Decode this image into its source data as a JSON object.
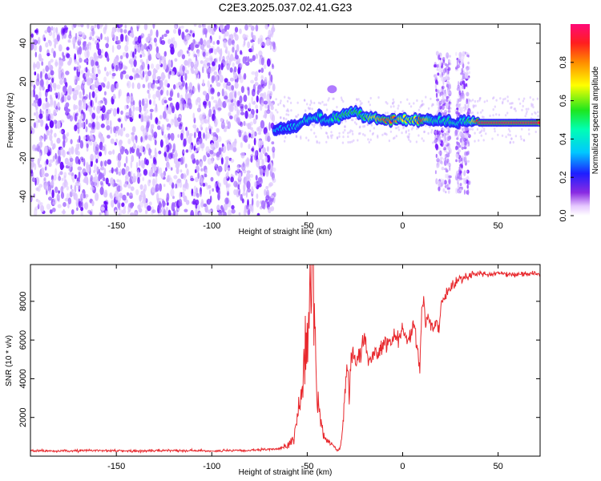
{
  "title": "C2E3.2025.037.02.41.G23",
  "colors": {
    "snr_line": "#e8282d",
    "noise_dots": "#7a1cff",
    "frame": "#000000"
  },
  "colorbar": {
    "label": "Normalized spectral amplitude",
    "ticks": [
      "0.0",
      "0.2",
      "0.4",
      "0.6",
      "0.8"
    ],
    "tick_values": [
      0.0,
      0.2,
      0.4,
      0.6,
      0.8
    ],
    "range": [
      0,
      1
    ]
  },
  "chart_data": [
    {
      "type": "heatmap",
      "name": "spectrogram",
      "xlabel": "Height of straight line (km)",
      "ylabel": "Frequency (Hz)",
      "xlim": [
        -195,
        72
      ],
      "ylim": [
        -50,
        50
      ],
      "x_ticks": [
        -150,
        -100,
        -50,
        0,
        50
      ],
      "x_tick_labels": [
        "-150",
        "-100",
        "-50",
        "0",
        "50"
      ],
      "y_ticks": [
        -40,
        -20,
        0,
        20,
        40
      ],
      "y_tick_labels": [
        "-40",
        "-20",
        "0",
        "20",
        "40"
      ],
      "noise_region": [
        -195,
        -67
      ],
      "signal_trace": {
        "x": [
          -67,
          -60,
          -55,
          -50,
          -45,
          -40,
          -35,
          -30,
          -25,
          -20,
          -15,
          -10,
          -5,
          0,
          5,
          10,
          15,
          20,
          25,
          30,
          35,
          40,
          50,
          60,
          72
        ],
        "freq": [
          -5,
          -4,
          -3,
          0,
          2,
          -1,
          1,
          3,
          4,
          2,
          1,
          0.5,
          0.5,
          0.5,
          0,
          0,
          0,
          0,
          -1,
          -1,
          -1,
          -1.5,
          -1.5,
          -1.5,
          -1.5
        ],
        "amplitude": [
          0.35,
          0.35,
          0.4,
          0.45,
          0.45,
          0.4,
          0.5,
          0.55,
          0.55,
          0.55,
          0.7,
          0.85,
          0.85,
          0.7,
          0.6,
          0.9,
          0.5,
          0.45,
          0.5,
          0.4,
          0.55,
          0.95,
          0.95,
          0.95,
          0.95
        ]
      },
      "vertical_bands": [
        [
          17,
          25
        ],
        [
          28,
          35
        ]
      ],
      "bump": {
        "x": -37,
        "freq": 16
      }
    },
    {
      "type": "line",
      "name": "snr",
      "xlabel": "Height of straight line (km)",
      "ylabel": "SNR (10 * v/v)",
      "xlim": [
        -195,
        72
      ],
      "ylim": [
        0,
        9900
      ],
      "x_ticks": [
        -150,
        -100,
        -50,
        0,
        50
      ],
      "x_tick_labels": [
        "-150",
        "-100",
        "-50",
        "0",
        "50"
      ],
      "y_ticks": [
        2000,
        4000,
        6000,
        8000
      ],
      "y_tick_labels": [
        "2000",
        "4000",
        "6000",
        "8000"
      ],
      "series": [
        {
          "x": [
            -195,
            -180,
            -160,
            -140,
            -120,
            -100,
            -80,
            -65,
            -60,
            -57,
            -55,
            -53,
            -51,
            -49,
            -48,
            -47,
            -46,
            -45,
            -44,
            -43,
            -42,
            -41,
            -40,
            -39,
            -38,
            -37,
            -36,
            -35,
            -34,
            -33,
            -32,
            -31,
            -30,
            -29,
            -28,
            -27,
            -26,
            -25,
            -24,
            -23,
            -22,
            -21,
            -20,
            -18,
            -16,
            -14,
            -12,
            -10,
            -8,
            -6,
            -4,
            -2,
            0,
            2,
            4,
            6,
            8,
            9,
            10,
            11,
            12,
            14,
            16,
            18,
            19,
            20,
            22,
            24,
            26,
            28,
            30,
            32,
            34,
            36,
            38,
            40,
            45,
            50,
            55,
            60,
            65,
            72
          ],
          "y": [
            280,
            260,
            300,
            260,
            300,
            270,
            290,
            380,
            550,
            900,
            2200,
            3500,
            5000,
            7500,
            8800,
            9400,
            7200,
            3500,
            2400,
            1800,
            1300,
            1000,
            900,
            800,
            700,
            600,
            500,
            400,
            300,
            400,
            900,
            2100,
            3600,
            4800,
            3100,
            4700,
            5200,
            5200,
            4800,
            5300,
            5000,
            5700,
            6300,
            5000,
            5100,
            5400,
            5500,
            5700,
            6000,
            5900,
            6200,
            6300,
            6500,
            6100,
            6300,
            6800,
            5200,
            4600,
            7600,
            8300,
            6800,
            7100,
            6600,
            7100,
            6300,
            7700,
            8200,
            8600,
            8800,
            9000,
            9150,
            9250,
            9300,
            9400,
            9350,
            9450,
            9380,
            9450,
            9400,
            9380,
            9450,
            9400
          ]
        }
      ]
    }
  ]
}
